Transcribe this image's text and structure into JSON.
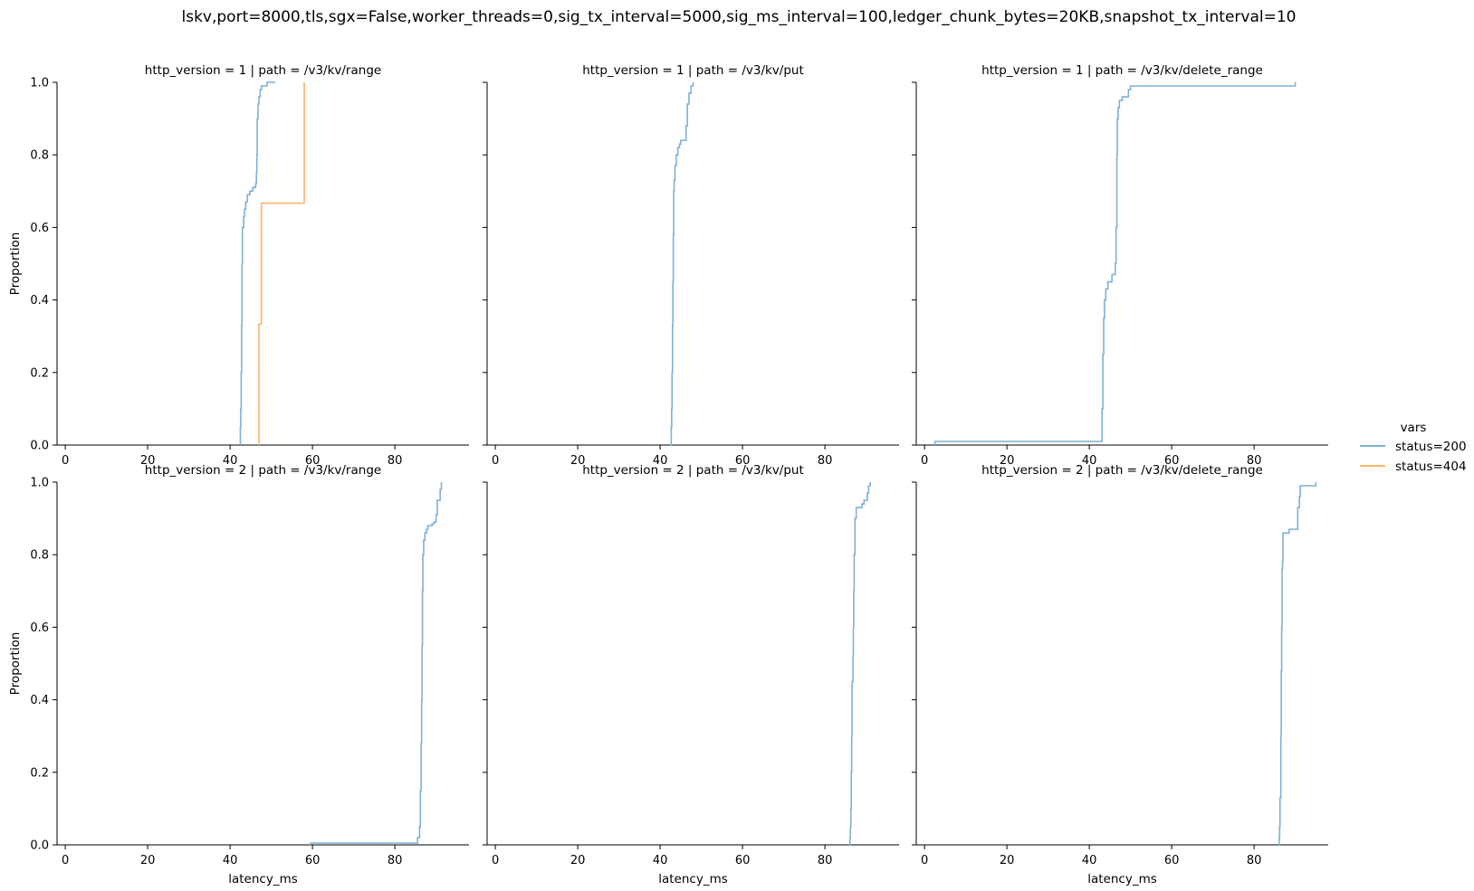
{
  "chart_data": {
    "type": "line",
    "subtype": "ecdf-step",
    "suptitle": "lskv,port=8000,tls,sgx=False,worker_threads=0,sig_tx_interval=5000,sig_ms_interval=100,ledger_chunk_bytes=20KB,snapshot_tx_interval=10",
    "legend": {
      "title": "vars",
      "position": "right",
      "entries": [
        {
          "label": "status=200",
          "color": "#7fb1d3"
        },
        {
          "label": "status=404",
          "color": "#fbb46a"
        }
      ]
    },
    "xlabel": "latency_ms",
    "ylabel": "Proportion",
    "xlim": [
      -2,
      98
    ],
    "ylim": [
      0,
      1
    ],
    "xticks": [
      "0",
      "20",
      "40",
      "60",
      "80"
    ],
    "yticks": [
      "0.0",
      "0.2",
      "0.4",
      "0.6",
      "0.8",
      "1.0"
    ],
    "grid": false,
    "panels": [
      {
        "title": "http_version = 1 | path = /v3/kv/range",
        "series": [
          {
            "name": "status=200",
            "points": [
              [
                42.5,
                0
              ],
              [
                42.5,
                0.05
              ],
              [
                42.6,
                0.1
              ],
              [
                42.7,
                0.2
              ],
              [
                42.8,
                0.33
              ],
              [
                42.9,
                0.5
              ],
              [
                43.0,
                0.6
              ],
              [
                43.3,
                0.63
              ],
              [
                43.5,
                0.65
              ],
              [
                43.8,
                0.67
              ],
              [
                44.2,
                0.69
              ],
              [
                44.8,
                0.7
              ],
              [
                45.5,
                0.71
              ],
              [
                46.2,
                0.72
              ],
              [
                46.4,
                0.75
              ],
              [
                46.5,
                0.8
              ],
              [
                46.6,
                0.9
              ],
              [
                46.8,
                0.94
              ],
              [
                47.0,
                0.96
              ],
              [
                47.3,
                0.98
              ],
              [
                47.6,
                0.99
              ],
              [
                48.5,
                0.99
              ],
              [
                49.0,
                1.0
              ],
              [
                51.0,
                1.0
              ]
            ]
          },
          {
            "name": "status=404",
            "points": [
              [
                47.0,
                0
              ],
              [
                47.0,
                0.333
              ],
              [
                47.6,
                0.333
              ],
              [
                47.6,
                0.667
              ],
              [
                58.0,
                0.667
              ],
              [
                58.0,
                1.0
              ]
            ]
          }
        ]
      },
      {
        "title": "http_version = 1 | path = /v3/kv/put",
        "series": [
          {
            "name": "status=200",
            "points": [
              [
                42.5,
                0
              ],
              [
                42.7,
                0.05
              ],
              [
                42.8,
                0.1
              ],
              [
                42.9,
                0.2
              ],
              [
                43.0,
                0.33
              ],
              [
                43.1,
                0.45
              ],
              [
                43.2,
                0.58
              ],
              [
                43.3,
                0.7
              ],
              [
                43.4,
                0.73
              ],
              [
                43.6,
                0.77
              ],
              [
                43.9,
                0.8
              ],
              [
                44.3,
                0.82
              ],
              [
                44.7,
                0.83
              ],
              [
                45.0,
                0.84
              ],
              [
                46.0,
                0.84
              ],
              [
                46.3,
                0.88
              ],
              [
                46.6,
                0.94
              ],
              [
                47.0,
                0.97
              ],
              [
                47.5,
                0.99
              ],
              [
                48.0,
                1.0
              ]
            ]
          }
        ]
      },
      {
        "title": "http_version = 1 | path = /v3/kv/delete_range",
        "series": [
          {
            "name": "status=200",
            "points": [
              [
                2.5,
                0
              ],
              [
                2.5,
                0.01
              ],
              [
                43.0,
                0.01
              ],
              [
                43.1,
                0.1
              ],
              [
                43.3,
                0.25
              ],
              [
                43.5,
                0.35
              ],
              [
                43.7,
                0.4
              ],
              [
                44.0,
                0.43
              ],
              [
                44.5,
                0.45
              ],
              [
                45.5,
                0.47
              ],
              [
                46.3,
                0.5
              ],
              [
                46.5,
                0.6
              ],
              [
                46.7,
                0.8
              ],
              [
                46.8,
                0.9
              ],
              [
                47.0,
                0.93
              ],
              [
                47.3,
                0.95
              ],
              [
                48.0,
                0.96
              ],
              [
                49.5,
                0.98
              ],
              [
                50.0,
                0.99
              ],
              [
                90.0,
                0.99
              ],
              [
                90.0,
                1.0
              ]
            ]
          }
        ]
      },
      {
        "title": "http_version = 2 | path = /v3/kv/range",
        "series": [
          {
            "name": "status=200",
            "points": [
              [
                59.5,
                0
              ],
              [
                59.5,
                0.005
              ],
              [
                85.0,
                0.005
              ],
              [
                85.5,
                0.02
              ],
              [
                86.0,
                0.05
              ],
              [
                86.2,
                0.15
              ],
              [
                86.4,
                0.28
              ],
              [
                86.5,
                0.4
              ],
              [
                86.6,
                0.55
              ],
              [
                86.7,
                0.7
              ],
              [
                86.8,
                0.8
              ],
              [
                87.0,
                0.84
              ],
              [
                87.3,
                0.86
              ],
              [
                87.7,
                0.87
              ],
              [
                88.0,
                0.88
              ],
              [
                89.0,
                0.885
              ],
              [
                89.5,
                0.89
              ],
              [
                90.0,
                0.91
              ],
              [
                90.3,
                0.95
              ],
              [
                91.0,
                0.98
              ],
              [
                91.3,
                1.0
              ]
            ]
          }
        ]
      },
      {
        "title": "http_version = 2 | path = /v3/kv/put",
        "series": [
          {
            "name": "status=200",
            "points": [
              [
                86.0,
                0
              ],
              [
                86.1,
                0.02
              ],
              [
                86.2,
                0.05
              ],
              [
                86.3,
                0.1
              ],
              [
                86.4,
                0.2
              ],
              [
                86.5,
                0.3
              ],
              [
                86.6,
                0.45
              ],
              [
                86.8,
                0.52
              ],
              [
                86.9,
                0.6
              ],
              [
                87.0,
                0.7
              ],
              [
                87.1,
                0.8
              ],
              [
                87.3,
                0.9
              ],
              [
                87.6,
                0.93
              ],
              [
                88.5,
                0.93
              ],
              [
                89.0,
                0.94
              ],
              [
                89.5,
                0.95
              ],
              [
                90.3,
                0.97
              ],
              [
                90.6,
                0.99
              ],
              [
                91.0,
                1.0
              ]
            ]
          }
        ]
      },
      {
        "title": "http_version = 2 | path = /v3/kv/delete_range",
        "series": [
          {
            "name": "status=200",
            "points": [
              [
                86.0,
                0
              ],
              [
                86.1,
                0.02
              ],
              [
                86.2,
                0.05
              ],
              [
                86.3,
                0.13
              ],
              [
                86.5,
                0.3
              ],
              [
                86.6,
                0.48
              ],
              [
                86.7,
                0.6
              ],
              [
                86.8,
                0.76
              ],
              [
                86.9,
                0.78
              ],
              [
                87.0,
                0.86
              ],
              [
                88.0,
                0.86
              ],
              [
                88.5,
                0.87
              ],
              [
                90.5,
                0.87
              ],
              [
                90.6,
                0.93
              ],
              [
                91.0,
                0.96
              ],
              [
                91.2,
                0.99
              ],
              [
                94.5,
                0.99
              ],
              [
                95.0,
                1.0
              ]
            ]
          }
        ]
      }
    ]
  }
}
